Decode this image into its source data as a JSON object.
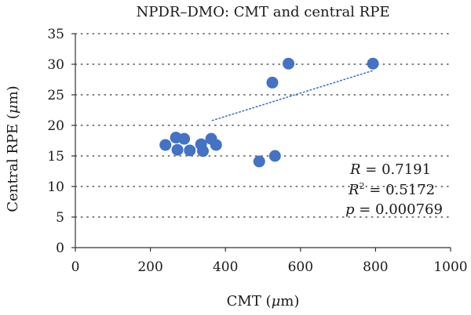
{
  "chart_data": {
    "type": "scatter",
    "title": "NPDR–DMO: CMT and central RPE",
    "xlabel_prefix": "CMT (",
    "xlabel_unit": "μ",
    "xlabel_suffix": "m)",
    "ylabel_prefix": "Central RPE (",
    "ylabel_unit": "μ",
    "ylabel_suffix": "m)",
    "xlim": [
      0,
      1000
    ],
    "ylim": [
      0,
      35
    ],
    "x_ticks": [
      0,
      200,
      400,
      600,
      800,
      1000
    ],
    "y_ticks": [
      0,
      5,
      10,
      15,
      20,
      25,
      30,
      35
    ],
    "grid": "horizontal dotted",
    "series": [
      {
        "color": "#4472c4",
        "points": [
          {
            "x": 240,
            "y": 16.8
          },
          {
            "x": 268,
            "y": 18.0
          },
          {
            "x": 272,
            "y": 16.0
          },
          {
            "x": 290,
            "y": 17.8
          },
          {
            "x": 305,
            "y": 15.9
          },
          {
            "x": 335,
            "y": 16.9
          },
          {
            "x": 340,
            "y": 15.8
          },
          {
            "x": 362,
            "y": 17.8
          },
          {
            "x": 375,
            "y": 16.8
          },
          {
            "x": 490,
            "y": 14.1
          },
          {
            "x": 525,
            "y": 27.0
          },
          {
            "x": 532,
            "y": 15.0
          },
          {
            "x": 568,
            "y": 30.1
          },
          {
            "x": 793,
            "y": 30.1
          }
        ]
      }
    ],
    "trendline": {
      "x0": 365,
      "y0": 20.8,
      "x1": 795,
      "y1": 29.0,
      "style": "dotted",
      "color": "#4472c4"
    },
    "annotations": {
      "r_label": "R",
      "r_value": " = 0.7191",
      "r2_label": "R",
      "r2_sup": "2",
      "r2_value": " = 0.5172",
      "p_label": "p",
      "p_value": " = 0.000769"
    }
  }
}
